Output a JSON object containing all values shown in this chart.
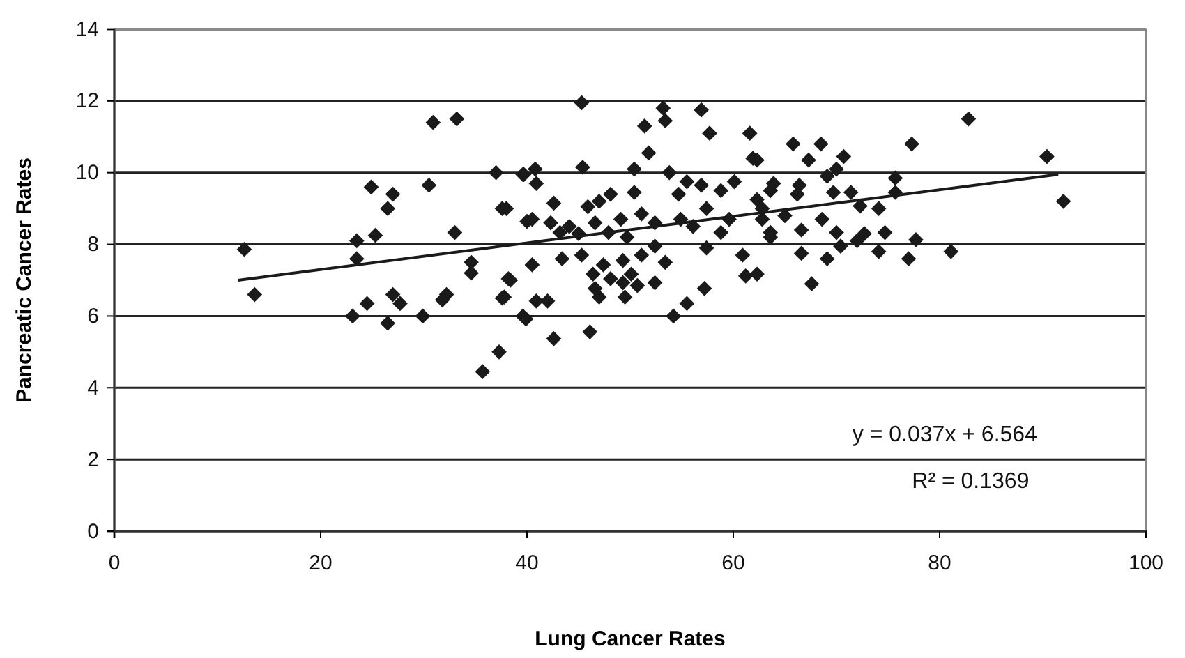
{
  "chart_data": {
    "type": "scatter",
    "xlabel": "Lung Cancer Rates",
    "ylabel": "Pancreatic Cancer Rates",
    "xlim": [
      0,
      100
    ],
    "xticks": [
      0,
      20,
      40,
      60,
      80,
      100
    ],
    "ylim": [
      0,
      14
    ],
    "yticks": [
      0,
      2,
      4,
      6,
      8,
      10,
      12,
      14
    ],
    "grid": "y",
    "annotations": [
      "y = 0.037x + 6.564",
      "R² = 0.1369"
    ],
    "series": [
      {
        "color": "#1a1a1a",
        "marker": "diamond",
        "x": [
          12.6,
          13.6,
          30.9,
          33.2,
          37.0,
          39.7,
          24.9,
          27.0,
          26.5,
          30.5,
          37.6,
          40.0,
          25.3,
          33.0,
          23.5,
          23.5,
          34.6,
          34.6,
          38.4,
          24.5,
          27.0,
          27.7,
          31.8,
          32.2,
          37.6,
          23.1,
          26.5,
          29.9,
          39.6,
          37.3,
          35.7,
          45.3,
          53.2,
          53.4,
          56.9,
          51.4,
          57.7,
          61.6,
          51.8,
          61.9,
          39.6,
          40.8,
          40.9,
          45.4,
          50.4,
          53.8,
          38.0,
          42.6,
          48.1,
          50.4,
          45.9,
          47.0,
          40.5,
          42.3,
          44.1,
          46.6,
          49.1,
          51.1,
          52.4,
          43.2,
          45.0,
          47.9,
          49.7,
          54.9,
          54.7,
          55.5,
          56.9,
          58.8,
          60.1,
          62.3,
          63.6,
          57.4,
          59.6,
          62.8,
          63.6,
          56.1,
          58.8,
          57.4,
          43.4,
          45.3,
          47.4,
          49.3,
          51.1,
          52.4,
          53.4,
          40.5,
          46.4,
          48.1,
          50.1,
          46.6,
          49.3,
          50.7,
          52.4,
          47.0,
          49.5,
          38.2,
          37.8,
          40.9,
          42.0,
          39.9,
          54.2,
          55.5,
          57.2,
          60.9,
          61.2,
          62.3,
          42.6,
          46.1,
          82.8,
          65.8,
          68.5,
          77.3,
          67.3,
          70.7,
          70.0,
          62.3,
          63.9,
          66.4,
          69.1,
          75.7,
          75.7,
          69.7,
          71.4,
          66.2,
          72.3,
          74.1,
          62.8,
          65.0,
          68.6,
          66.6,
          70.0,
          72.7,
          74.7,
          77.7,
          63.6,
          70.4,
          72.0,
          66.6,
          69.1,
          74.1,
          77.0,
          81.1,
          67.6,
          90.4,
          92.0
        ],
        "values": [
          7.86,
          6.6,
          11.4,
          11.5,
          10.0,
          9.95,
          9.6,
          9.4,
          9.0,
          9.65,
          9.0,
          8.64,
          8.25,
          8.33,
          8.1,
          7.6,
          7.5,
          7.2,
          7.0,
          6.35,
          6.6,
          6.35,
          6.45,
          6.6,
          6.5,
          6.0,
          5.8,
          6.0,
          6.0,
          5.0,
          4.45,
          11.95,
          11.8,
          11.45,
          11.75,
          11.3,
          11.1,
          11.1,
          10.55,
          10.4,
          9.95,
          10.1,
          9.7,
          10.15,
          10.1,
          10.0,
          9.0,
          9.15,
          9.4,
          9.45,
          9.05,
          9.2,
          8.7,
          8.6,
          8.5,
          8.6,
          8.7,
          8.85,
          8.6,
          8.33,
          8.3,
          8.33,
          8.2,
          8.7,
          9.4,
          9.75,
          9.65,
          9.5,
          9.75,
          9.25,
          9.5,
          9.0,
          8.7,
          8.7,
          8.33,
          8.5,
          8.33,
          7.9,
          7.6,
          7.7,
          7.43,
          7.55,
          7.7,
          7.95,
          7.5,
          7.43,
          7.17,
          7.04,
          7.17,
          6.77,
          6.93,
          6.85,
          6.93,
          6.53,
          6.53,
          7.04,
          6.53,
          6.42,
          6.42,
          5.92,
          6.0,
          6.35,
          6.77,
          7.7,
          7.12,
          7.17,
          5.37,
          5.56,
          11.5,
          10.8,
          10.8,
          10.8,
          10.35,
          10.45,
          10.1,
          10.35,
          9.7,
          9.65,
          9.9,
          9.85,
          9.45,
          9.45,
          9.45,
          9.4,
          9.07,
          9.0,
          9.0,
          8.8,
          8.7,
          8.4,
          8.33,
          8.3,
          8.33,
          8.13,
          8.2,
          7.95,
          8.1,
          7.75,
          7.6,
          7.8,
          7.6,
          7.8,
          6.9,
          10.45,
          9.2
        ]
      },
      {
        "type": "line",
        "color": "#1a1a1a",
        "marker": "none",
        "line_style": "solid",
        "x": [
          12.0,
          91.5
        ],
        "values": [
          7.0,
          9.95
        ]
      }
    ]
  }
}
